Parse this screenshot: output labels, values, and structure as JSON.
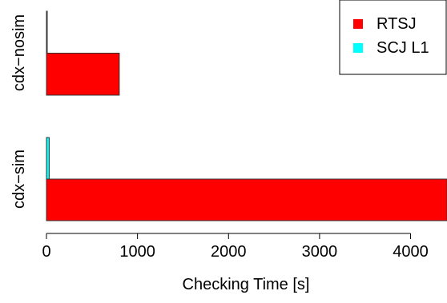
{
  "chart_data": {
    "type": "bar",
    "orientation": "horizontal",
    "title": "",
    "xlabel": "Checking Time [s]",
    "ylabel": "",
    "xlim": [
      0,
      4400
    ],
    "x_ticks": [
      0,
      1000,
      2000,
      3000,
      4000
    ],
    "categories": [
      "cdx−nosim",
      "cdx−sim"
    ],
    "series": [
      {
        "name": "RTSJ",
        "color": "#ff0000",
        "values": [
          800,
          4400
        ]
      },
      {
        "name": "SCJ L1",
        "color": "#00ffff",
        "values": [
          5,
          30
        ]
      }
    ],
    "legend_position": "top-right",
    "grid": false
  }
}
